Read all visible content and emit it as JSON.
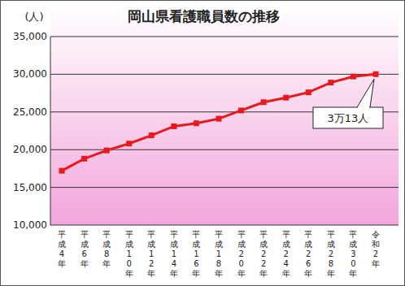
{
  "chart_data": {
    "type": "line",
    "title": "岡山県看護職員数の推移",
    "y_label": "(人)",
    "categories": [
      "平成4年",
      "平成6年",
      "平成8年",
      "平成10年",
      "平成12年",
      "平成14年",
      "平成16年",
      "平成18年",
      "平成20年",
      "平成22年",
      "平成24年",
      "平成26年",
      "平成28年",
      "平成30年",
      "令和2年"
    ],
    "values": [
      17200,
      18800,
      19900,
      20800,
      21900,
      23100,
      23500,
      24100,
      25200,
      26300,
      26900,
      27600,
      28900,
      29700,
      30013
    ],
    "color": "#e8191b",
    "marker": "square",
    "ylim": [
      10000,
      35000
    ],
    "yticks": [
      {
        "value": 10000,
        "label": "10,000"
      },
      {
        "value": 15000,
        "label": "15,000"
      },
      {
        "value": 20000,
        "label": "20,000"
      },
      {
        "value": 25000,
        "label": "25,000"
      },
      {
        "value": 30000,
        "label": "30,000"
      },
      {
        "value": 35000,
        "label": "35,000"
      }
    ],
    "grid": true,
    "annotation": "3万13人"
  }
}
